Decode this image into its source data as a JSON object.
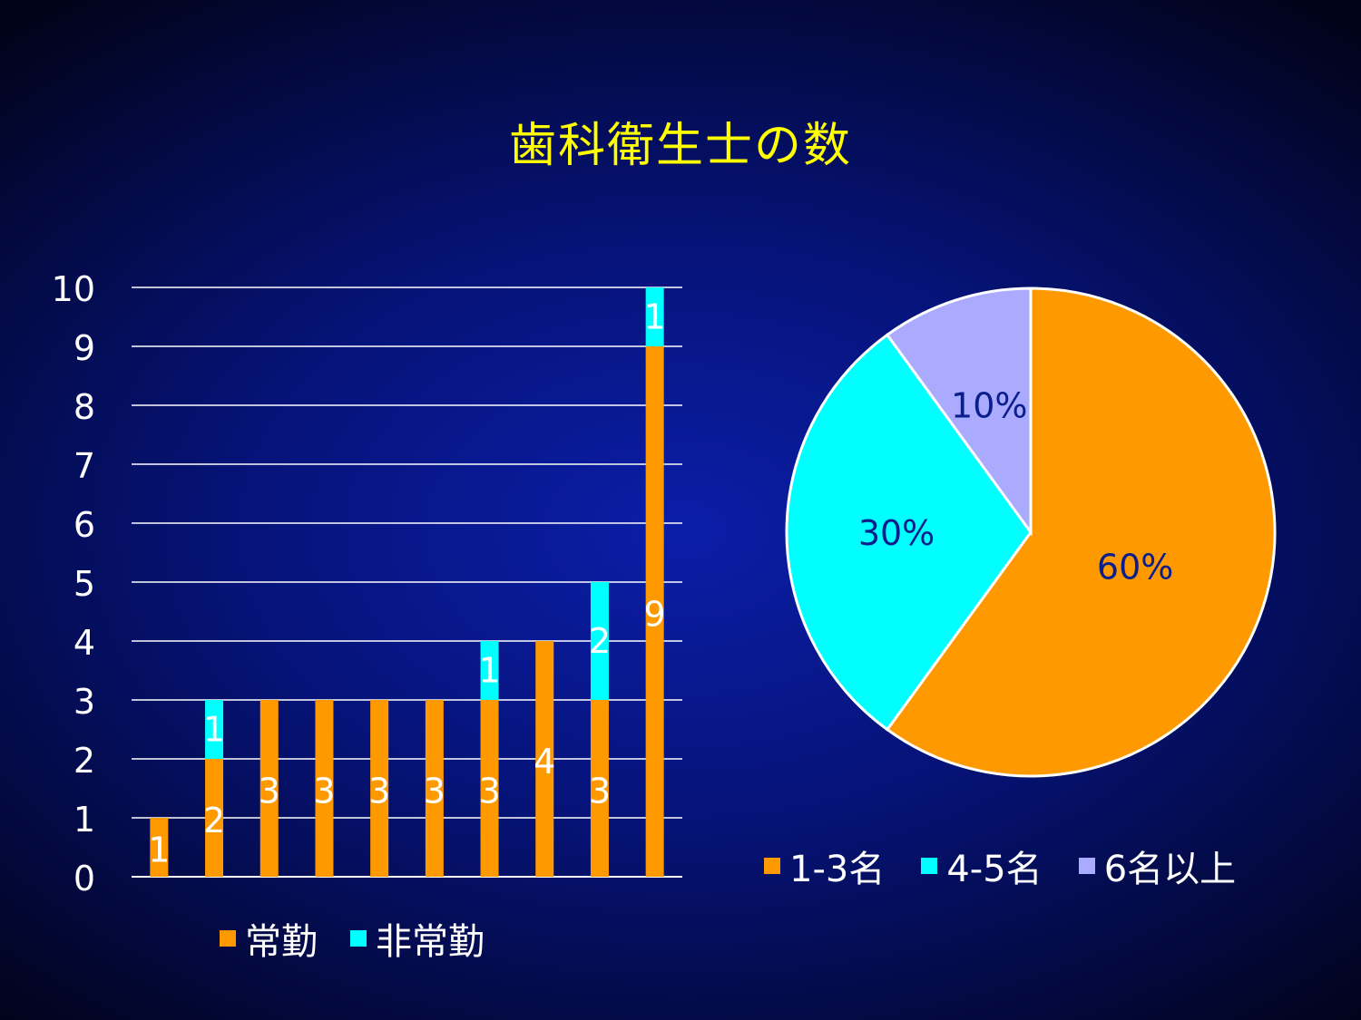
{
  "title": "歯科衛生士の数",
  "colors": {
    "orange": "#ff9900",
    "cyan": "#00ffff",
    "lavender": "#aaaaff"
  },
  "chart_data": [
    {
      "type": "bar",
      "stacked": true,
      "ylim": [
        0,
        10
      ],
      "yticks": [
        "0",
        "1",
        "2",
        "3",
        "4",
        "5",
        "6",
        "7",
        "8",
        "9",
        "10"
      ],
      "grid": true,
      "legend_position": "bottom",
      "series": [
        {
          "name": "常勤",
          "color": "#ff9900",
          "values": [
            1,
            2,
            3,
            3,
            3,
            3,
            3,
            4,
            3,
            9
          ]
        },
        {
          "name": "非常勤",
          "color": "#00ffff",
          "values": [
            0,
            1,
            0,
            0,
            0,
            0,
            1,
            0,
            2,
            1
          ]
        }
      ]
    },
    {
      "type": "pie",
      "legend_position": "bottom",
      "slices": [
        {
          "label": "1-3名",
          "value": 60,
          "display": "60%",
          "color": "#ff9900"
        },
        {
          "label": "4-5名",
          "value": 30,
          "display": "30%",
          "color": "#00ffff"
        },
        {
          "label": "6名以上",
          "value": 10,
          "display": "10%",
          "color": "#aaaaff"
        }
      ]
    }
  ],
  "bar_legend": [
    {
      "label": "常勤",
      "color": "#ff9900"
    },
    {
      "label": "非常勤",
      "color": "#00ffff"
    }
  ],
  "pie_legend": [
    {
      "label": "1-3名",
      "color": "#ff9900"
    },
    {
      "label": "4-5名",
      "color": "#00ffff"
    },
    {
      "label": "6名以上",
      "color": "#aaaaff"
    }
  ]
}
